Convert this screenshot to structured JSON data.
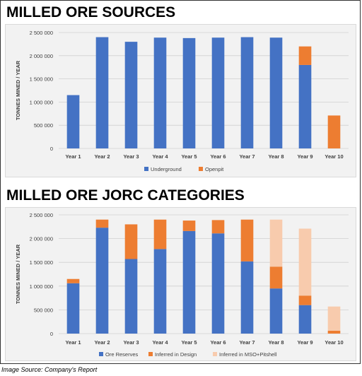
{
  "caption": "Image Source: Company's Report",
  "chart_data": [
    {
      "type": "bar",
      "stacked": true,
      "title": "MILLED ORE SOURCES",
      "xlabel": "",
      "ylabel": "TONNES MINED / YEAR",
      "ylim": [
        0,
        2500000
      ],
      "yticks": [
        0,
        500000,
        1000000,
        1500000,
        2000000,
        2500000
      ],
      "ytick_labels": [
        "0",
        "500 000",
        "1 000 000",
        "1 500 000",
        "2 000 000",
        "2 500 000"
      ],
      "grid": true,
      "legend": "bottom",
      "categories": [
        "Year 1",
        "Year 2",
        "Year 3",
        "Year 4",
        "Year 5",
        "Year 6",
        "Year 7",
        "Year 8",
        "Year 9",
        "Year 10"
      ],
      "series": [
        {
          "name": "Underground",
          "color": "#4472c4",
          "values": [
            1150000,
            2400000,
            2300000,
            2390000,
            2380000,
            2390000,
            2400000,
            2390000,
            1800000,
            0
          ]
        },
        {
          "name": "Openpit",
          "color": "#ed7d31",
          "values": [
            0,
            0,
            0,
            0,
            0,
            0,
            0,
            0,
            400000,
            710000
          ]
        }
      ]
    },
    {
      "type": "bar",
      "stacked": true,
      "title": "MILLED ORE JORC CATEGORIES",
      "xlabel": "",
      "ylabel": "TONNES MINED / YEAR",
      "ylim": [
        0,
        2500000
      ],
      "yticks": [
        0,
        500000,
        1000000,
        1500000,
        2000000,
        2500000
      ],
      "ytick_labels": [
        "0",
        "500 000",
        "1 000 000",
        "1 500 000",
        "2 000 000",
        "2 500 000"
      ],
      "grid": true,
      "legend": "bottom",
      "categories": [
        "Year 1",
        "Year 2",
        "Year 3",
        "Year 4",
        "Year 5",
        "Year 6",
        "Year 7",
        "Year 8",
        "Year 9",
        "Year 10"
      ],
      "series": [
        {
          "name": "Ore Reserves",
          "color": "#4472c4",
          "values": [
            1060000,
            2230000,
            1570000,
            1780000,
            2160000,
            2110000,
            1520000,
            950000,
            600000,
            0
          ]
        },
        {
          "name": "Inferred in Design",
          "color": "#ed7d31",
          "values": [
            90000,
            170000,
            730000,
            620000,
            220000,
            280000,
            880000,
            460000,
            200000,
            60000
          ]
        },
        {
          "name": "Inferred in MSO+Pitshell",
          "color": "#f8cbad",
          "values": [
            0,
            0,
            0,
            0,
            0,
            0,
            0,
            990000,
            1410000,
            510000
          ]
        }
      ]
    }
  ]
}
